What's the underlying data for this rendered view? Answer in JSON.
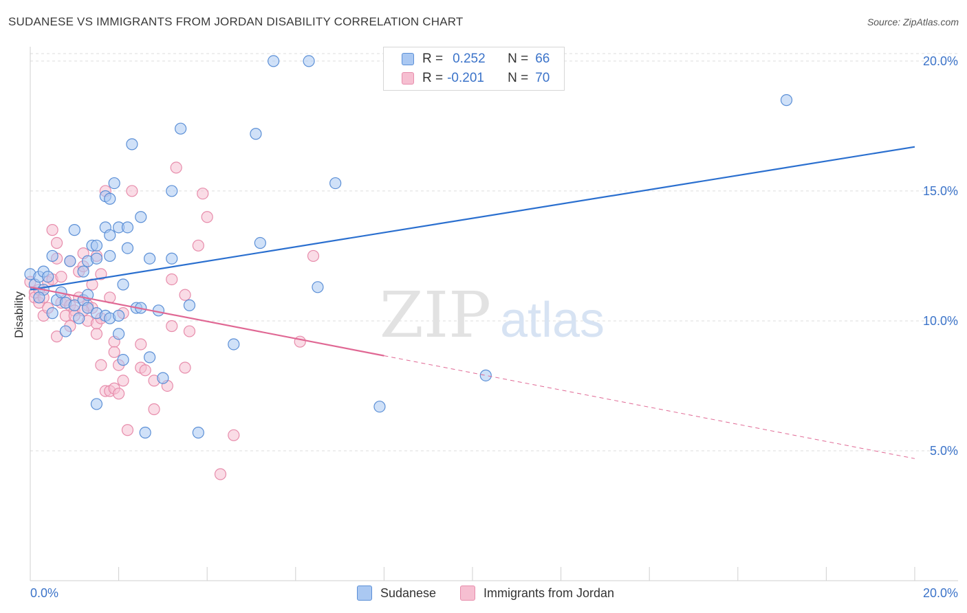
{
  "header": {
    "title": "SUDANESE VS IMMIGRANTS FROM JORDAN DISABILITY CORRELATION CHART",
    "source": "Source: ZipAtlas.com"
  },
  "legend_stats": {
    "r_label": "R =",
    "n_label": "N =",
    "sudanese": {
      "r": "0.252",
      "n": "66"
    },
    "jordan": {
      "r": "-0.201",
      "n": "70"
    }
  },
  "watermark": {
    "zip": "ZIP",
    "atlas": "atlas"
  },
  "colors": {
    "sudanese_fill": "#aac8f2",
    "sudanese_stroke": "#5b8fd6",
    "sudanese_line": "#2a6fcf",
    "jordan_fill": "#f6bfd1",
    "jordan_stroke": "#e78cab",
    "jordan_line": "#e06894",
    "tick_text": "#3b73c9",
    "grid": "#dddddd"
  },
  "chart_data": {
    "type": "scatter",
    "title": "SUDANESE VS IMMIGRANTS FROM JORDAN DISABILITY CORRELATION CHART",
    "xlabel": "",
    "ylabel": "Disability",
    "xlim": [
      0,
      20
    ],
    "ylim": [
      0,
      20.5
    ],
    "x_tick_labels": [
      "0.0%",
      "20.0%"
    ],
    "y_ticks": [
      5,
      10,
      15,
      20
    ],
    "y_tick_labels": [
      "5.0%",
      "10.0%",
      "15.0%",
      "20.0%"
    ],
    "grid": "horizontal dashed",
    "legend": [
      "Sudanese",
      "Immigrants from Jordan"
    ],
    "series": [
      {
        "name": "Sudanese",
        "points": [
          [
            0.0,
            11.8
          ],
          [
            0.1,
            11.4
          ],
          [
            0.2,
            11.7
          ],
          [
            0.3,
            11.9
          ],
          [
            0.4,
            11.7
          ],
          [
            0.5,
            10.3
          ],
          [
            0.5,
            12.5
          ],
          [
            0.6,
            10.8
          ],
          [
            0.7,
            11.1
          ],
          [
            0.8,
            9.6
          ],
          [
            0.8,
            10.7
          ],
          [
            0.9,
            12.3
          ],
          [
            1.0,
            13.5
          ],
          [
            1.0,
            10.6
          ],
          [
            1.1,
            10.1
          ],
          [
            1.2,
            11.9
          ],
          [
            1.2,
            10.8
          ],
          [
            1.3,
            12.3
          ],
          [
            1.3,
            11.0
          ],
          [
            1.3,
            10.5
          ],
          [
            1.4,
            12.9
          ],
          [
            1.5,
            12.9
          ],
          [
            1.5,
            12.4
          ],
          [
            1.5,
            10.3
          ],
          [
            1.5,
            6.8
          ],
          [
            1.7,
            10.2
          ],
          [
            1.7,
            14.8
          ],
          [
            1.7,
            13.6
          ],
          [
            1.8,
            14.7
          ],
          [
            1.8,
            13.3
          ],
          [
            1.8,
            12.5
          ],
          [
            1.8,
            10.1
          ],
          [
            1.9,
            15.3
          ],
          [
            2.0,
            13.6
          ],
          [
            2.0,
            9.5
          ],
          [
            2.0,
            10.2
          ],
          [
            2.1,
            11.4
          ],
          [
            2.1,
            8.5
          ],
          [
            2.2,
            13.6
          ],
          [
            2.2,
            12.8
          ],
          [
            2.3,
            16.8
          ],
          [
            2.4,
            10.5
          ],
          [
            2.5,
            14.0
          ],
          [
            2.5,
            10.5
          ],
          [
            2.6,
            5.7
          ],
          [
            2.7,
            12.4
          ],
          [
            2.7,
            8.6
          ],
          [
            2.9,
            10.4
          ],
          [
            3.0,
            7.8
          ],
          [
            3.2,
            15.0
          ],
          [
            3.2,
            12.4
          ],
          [
            3.4,
            17.4
          ],
          [
            3.6,
            10.6
          ],
          [
            3.8,
            5.7
          ],
          [
            4.6,
            9.1
          ],
          [
            5.1,
            17.2
          ],
          [
            5.2,
            13.0
          ],
          [
            5.5,
            20.0
          ],
          [
            6.3,
            20.0
          ],
          [
            6.5,
            11.3
          ],
          [
            6.9,
            15.3
          ],
          [
            7.9,
            6.7
          ],
          [
            10.3,
            7.9
          ],
          [
            17.1,
            18.5
          ],
          [
            0.3,
            11.2
          ],
          [
            0.2,
            10.9
          ]
        ],
        "trend": {
          "x": [
            0,
            20
          ],
          "y": [
            11.2,
            16.7
          ]
        }
      },
      {
        "name": "Immigrants from Jordan",
        "points": [
          [
            0.0,
            11.5
          ],
          [
            0.1,
            11.1
          ],
          [
            0.1,
            10.9
          ],
          [
            0.2,
            11.2
          ],
          [
            0.2,
            10.7
          ],
          [
            0.3,
            10.2
          ],
          [
            0.3,
            10.9
          ],
          [
            0.4,
            11.5
          ],
          [
            0.4,
            10.5
          ],
          [
            0.5,
            13.5
          ],
          [
            0.5,
            11.6
          ],
          [
            0.6,
            12.4
          ],
          [
            0.6,
            13.0
          ],
          [
            0.6,
            9.4
          ],
          [
            0.7,
            10.7
          ],
          [
            0.7,
            11.7
          ],
          [
            0.8,
            10.2
          ],
          [
            0.8,
            10.8
          ],
          [
            0.9,
            12.3
          ],
          [
            0.9,
            10.6
          ],
          [
            1.0,
            10.4
          ],
          [
            1.0,
            10.2
          ],
          [
            1.1,
            11.9
          ],
          [
            1.1,
            10.9
          ],
          [
            1.2,
            12.6
          ],
          [
            1.2,
            12.1
          ],
          [
            1.3,
            10.6
          ],
          [
            1.3,
            10.0
          ],
          [
            1.4,
            11.4
          ],
          [
            1.4,
            10.5
          ],
          [
            1.5,
            12.5
          ],
          [
            1.5,
            9.9
          ],
          [
            1.6,
            11.8
          ],
          [
            1.6,
            10.1
          ],
          [
            1.6,
            8.3
          ],
          [
            1.7,
            15.0
          ],
          [
            1.7,
            7.3
          ],
          [
            1.8,
            10.9
          ],
          [
            1.8,
            7.3
          ],
          [
            1.9,
            9.2
          ],
          [
            1.9,
            8.8
          ],
          [
            1.9,
            7.4
          ],
          [
            2.0,
            8.3
          ],
          [
            2.0,
            7.2
          ],
          [
            2.1,
            10.3
          ],
          [
            2.1,
            7.7
          ],
          [
            2.2,
            5.8
          ],
          [
            2.3,
            15.0
          ],
          [
            2.5,
            9.1
          ],
          [
            2.5,
            8.2
          ],
          [
            2.6,
            8.1
          ],
          [
            2.8,
            7.7
          ],
          [
            2.8,
            6.6
          ],
          [
            3.1,
            7.5
          ],
          [
            3.2,
            11.6
          ],
          [
            3.2,
            9.8
          ],
          [
            3.3,
            15.9
          ],
          [
            3.5,
            11.0
          ],
          [
            3.5,
            8.2
          ],
          [
            3.6,
            9.6
          ],
          [
            3.8,
            12.9
          ],
          [
            3.9,
            14.9
          ],
          [
            4.0,
            14.0
          ],
          [
            4.3,
            4.1
          ],
          [
            4.6,
            5.6
          ],
          [
            6.1,
            9.2
          ],
          [
            6.4,
            12.5
          ],
          [
            1.5,
            9.5
          ],
          [
            0.9,
            9.8
          ],
          [
            1.2,
            10.4
          ]
        ],
        "trend": {
          "x": [
            0,
            20
          ],
          "y": [
            11.3,
            4.7
          ],
          "solid_until_x": 8.0
        }
      }
    ]
  }
}
